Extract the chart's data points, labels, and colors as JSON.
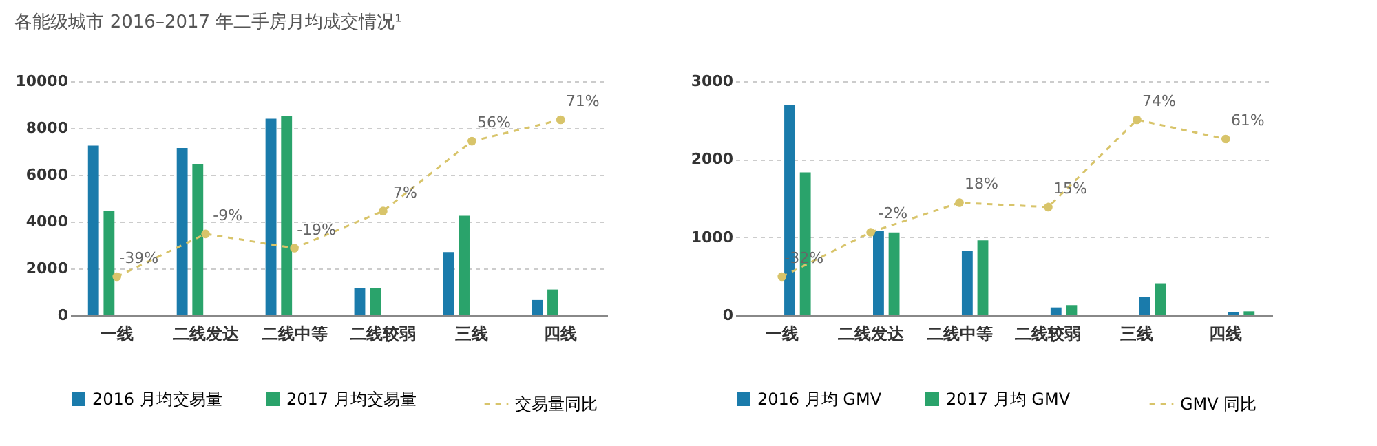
{
  "chart_data": [
    {
      "type": "bar",
      "title": "各能级城市 2016–2017 年二手房月均成交情况¹",
      "categories": [
        "一线",
        "二线发达",
        "二线中等",
        "二线较弱",
        "三线",
        "四线"
      ],
      "series": [
        {
          "name": "2016 月均交易量",
          "color": "#1a7bab",
          "values": [
            7250,
            7150,
            8400,
            1150,
            2700,
            650
          ]
        },
        {
          "name": "2017 月均交易量",
          "color": "#2aa36b",
          "values": [
            4450,
            6450,
            8500,
            1150,
            4250,
            1100
          ]
        },
        {
          "name": "交易量同比",
          "type": "line",
          "axis": "y2",
          "color": "#d8c46a",
          "line_style": "dashed",
          "marker": "circle",
          "values": [
            -39,
            -9,
            -19,
            7,
            56,
            71
          ],
          "value_labels": [
            "-39%",
            "-9%",
            "-19%",
            "7%",
            "56%",
            "71%"
          ]
        }
      ],
      "ylim": [
        0,
        10000
      ],
      "yticks": [
        0,
        2000,
        4000,
        6000,
        8000,
        10000
      ],
      "grid": "y",
      "legend": "bottom"
    },
    {
      "type": "bar",
      "categories": [
        "一线",
        "二线发达",
        "二线中等",
        "二线较弱",
        "三线",
        "四线"
      ],
      "series": [
        {
          "name": "2016 月均 GMV",
          "color": "#1a7bab",
          "values": [
            2700,
            1080,
            820,
            100,
            230,
            40
          ]
        },
        {
          "name": "2017 月均 GMV",
          "color": "#2aa36b",
          "values": [
            1830,
            1060,
            960,
            130,
            410,
            50
          ]
        },
        {
          "name": "GMV 同比",
          "type": "line",
          "axis": "y2",
          "color": "#d8c46a",
          "line_style": "dashed",
          "marker": "circle",
          "values": [
            -32,
            -2,
            18,
            15,
            74,
            61
          ],
          "value_labels": [
            "-32%",
            "-2%",
            "18%",
            "15%",
            "74%",
            "61%"
          ]
        }
      ],
      "ylim": [
        0,
        3000
      ],
      "yticks": [
        0,
        1000,
        2000,
        3000
      ],
      "grid": "y",
      "legend": "bottom"
    }
  ]
}
